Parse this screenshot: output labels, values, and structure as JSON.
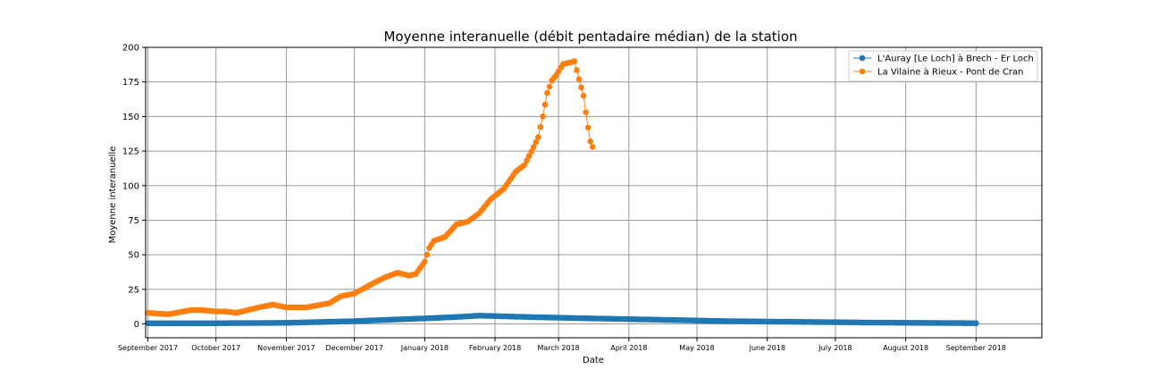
{
  "chart_data": {
    "type": "line",
    "title": "Moyenne interanuelle  (débit pentadaire médian) de la station",
    "xlabel": "Date",
    "ylabel": "Moyenne interanuelle",
    "x_range": [
      "2017-08-31",
      "2018-09-30"
    ],
    "ylim": [
      -10,
      200
    ],
    "y_ticks": [
      0,
      25,
      50,
      75,
      100,
      125,
      150,
      175,
      200
    ],
    "x_ticks": [
      {
        "date": "2017-09-01",
        "label": "September 2017"
      },
      {
        "date": "2017-10-01",
        "label": "October 2017"
      },
      {
        "date": "2017-11-01",
        "label": "November 2017"
      },
      {
        "date": "2017-12-01",
        "label": "December 2017"
      },
      {
        "date": "2018-01-01",
        "label": "January 2018"
      },
      {
        "date": "2018-02-01",
        "label": "February 2018"
      },
      {
        "date": "2018-03-01",
        "label": "March 2018"
      },
      {
        "date": "2018-04-01",
        "label": "April 2018"
      },
      {
        "date": "2018-05-01",
        "label": "May 2018"
      },
      {
        "date": "2018-06-01",
        "label": "June 2018"
      },
      {
        "date": "2018-07-01",
        "label": "July 2018"
      },
      {
        "date": "2018-08-01",
        "label": "August 2018"
      },
      {
        "date": "2018-09-01",
        "label": "September 2018"
      }
    ],
    "grid": true,
    "legend_position": "top-right",
    "series": [
      {
        "name": "L'Auray [Le Loch] à Brech - Er Loch",
        "color": "#1f77b4",
        "points": [
          [
            "2017-09-01",
            0.5
          ],
          [
            "2017-10-01",
            0.5
          ],
          [
            "2017-11-01",
            0.8
          ],
          [
            "2017-12-01",
            2.0
          ],
          [
            "2018-01-01",
            4.0
          ],
          [
            "2018-01-15",
            5.0
          ],
          [
            "2018-01-25",
            6.0
          ],
          [
            "2018-02-15",
            5.0
          ],
          [
            "2018-03-15",
            4.0
          ],
          [
            "2018-04-15",
            3.0
          ],
          [
            "2018-05-15",
            2.0
          ],
          [
            "2018-06-15",
            1.5
          ],
          [
            "2018-07-15",
            1.0
          ],
          [
            "2018-08-15",
            0.7
          ],
          [
            "2018-09-01",
            0.5
          ]
        ]
      },
      {
        "name": "La Vilaine à Rieux - Pont de Cran",
        "color": "#ff7f0e",
        "points": [
          [
            "2017-09-01",
            8
          ],
          [
            "2017-09-05",
            7.5
          ],
          [
            "2017-09-10",
            7
          ],
          [
            "2017-09-15",
            8.5
          ],
          [
            "2017-09-20",
            10
          ],
          [
            "2017-09-25",
            10
          ],
          [
            "2017-10-01",
            9
          ],
          [
            "2017-10-05",
            9
          ],
          [
            "2017-10-10",
            8
          ],
          [
            "2017-10-15",
            10
          ],
          [
            "2017-10-20",
            12
          ],
          [
            "2017-10-26",
            14
          ],
          [
            "2017-11-01",
            12
          ],
          [
            "2017-11-10",
            12
          ],
          [
            "2017-11-20",
            15
          ],
          [
            "2017-11-25",
            20
          ],
          [
            "2017-12-01",
            22
          ],
          [
            "2017-12-10",
            30
          ],
          [
            "2017-12-15",
            34
          ],
          [
            "2017-12-20",
            37
          ],
          [
            "2017-12-25",
            35
          ],
          [
            "2017-12-28",
            36
          ],
          [
            "2018-01-01",
            45
          ],
          [
            "2018-01-03",
            55
          ],
          [
            "2018-01-05",
            60
          ],
          [
            "2018-01-10",
            63
          ],
          [
            "2018-01-15",
            72
          ],
          [
            "2018-01-20",
            74
          ],
          [
            "2018-01-25",
            80
          ],
          [
            "2018-01-30",
            90
          ],
          [
            "2018-02-05",
            98
          ],
          [
            "2018-02-10",
            110
          ],
          [
            "2018-02-14",
            115
          ],
          [
            "2018-02-18",
            128
          ],
          [
            "2018-02-20",
            135
          ],
          [
            "2018-02-22",
            150
          ],
          [
            "2018-02-24",
            167
          ],
          [
            "2018-02-26",
            176
          ],
          [
            "2018-02-28",
            180
          ],
          [
            "2018-03-03",
            188
          ],
          [
            "2018-03-06",
            189
          ],
          [
            "2018-03-08",
            190
          ],
          [
            "2018-03-10",
            177
          ],
          [
            "2018-03-12",
            165
          ],
          [
            "2018-03-13",
            153
          ],
          [
            "2018-03-14",
            142
          ],
          [
            "2018-03-15",
            132
          ],
          [
            "2018-03-16",
            128
          ]
        ]
      }
    ]
  }
}
